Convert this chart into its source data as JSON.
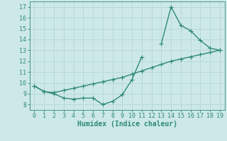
{
  "x": [
    0,
    1,
    2,
    3,
    4,
    5,
    6,
    7,
    8,
    9,
    10,
    11,
    12,
    13,
    14,
    15,
    16,
    17,
    18,
    19
  ],
  "y_curve": [
    9.7,
    9.2,
    9.0,
    8.6,
    8.5,
    8.6,
    8.6,
    8.0,
    8.3,
    8.9,
    10.3,
    12.4,
    null,
    13.6,
    17.0,
    15.3,
    14.8,
    13.9,
    13.2,
    13.0
  ],
  "y_line": [
    9.7,
    9.2,
    9.1,
    9.3,
    9.5,
    9.7,
    9.9,
    10.1,
    10.3,
    10.5,
    10.8,
    11.1,
    11.4,
    11.7,
    12.0,
    12.2,
    12.4,
    12.6,
    12.8,
    13.0
  ],
  "color": "#2e8b74",
  "bg_color": "#cde8e8",
  "grid_color": "#b8d8d8",
  "xlabel": "Humidex (Indice chaleur)",
  "xlim": [
    -0.5,
    19.5
  ],
  "ylim": [
    7.5,
    17.5
  ],
  "xticks": [
    0,
    1,
    2,
    3,
    4,
    5,
    6,
    7,
    8,
    9,
    10,
    11,
    12,
    13,
    14,
    15,
    16,
    17,
    18,
    19
  ],
  "yticks": [
    8,
    9,
    10,
    11,
    12,
    13,
    14,
    15,
    16,
    17
  ],
  "marker": "+",
  "markersize": 4,
  "linewidth": 1.0,
  "label_fontsize": 7,
  "tick_fontsize": 6
}
